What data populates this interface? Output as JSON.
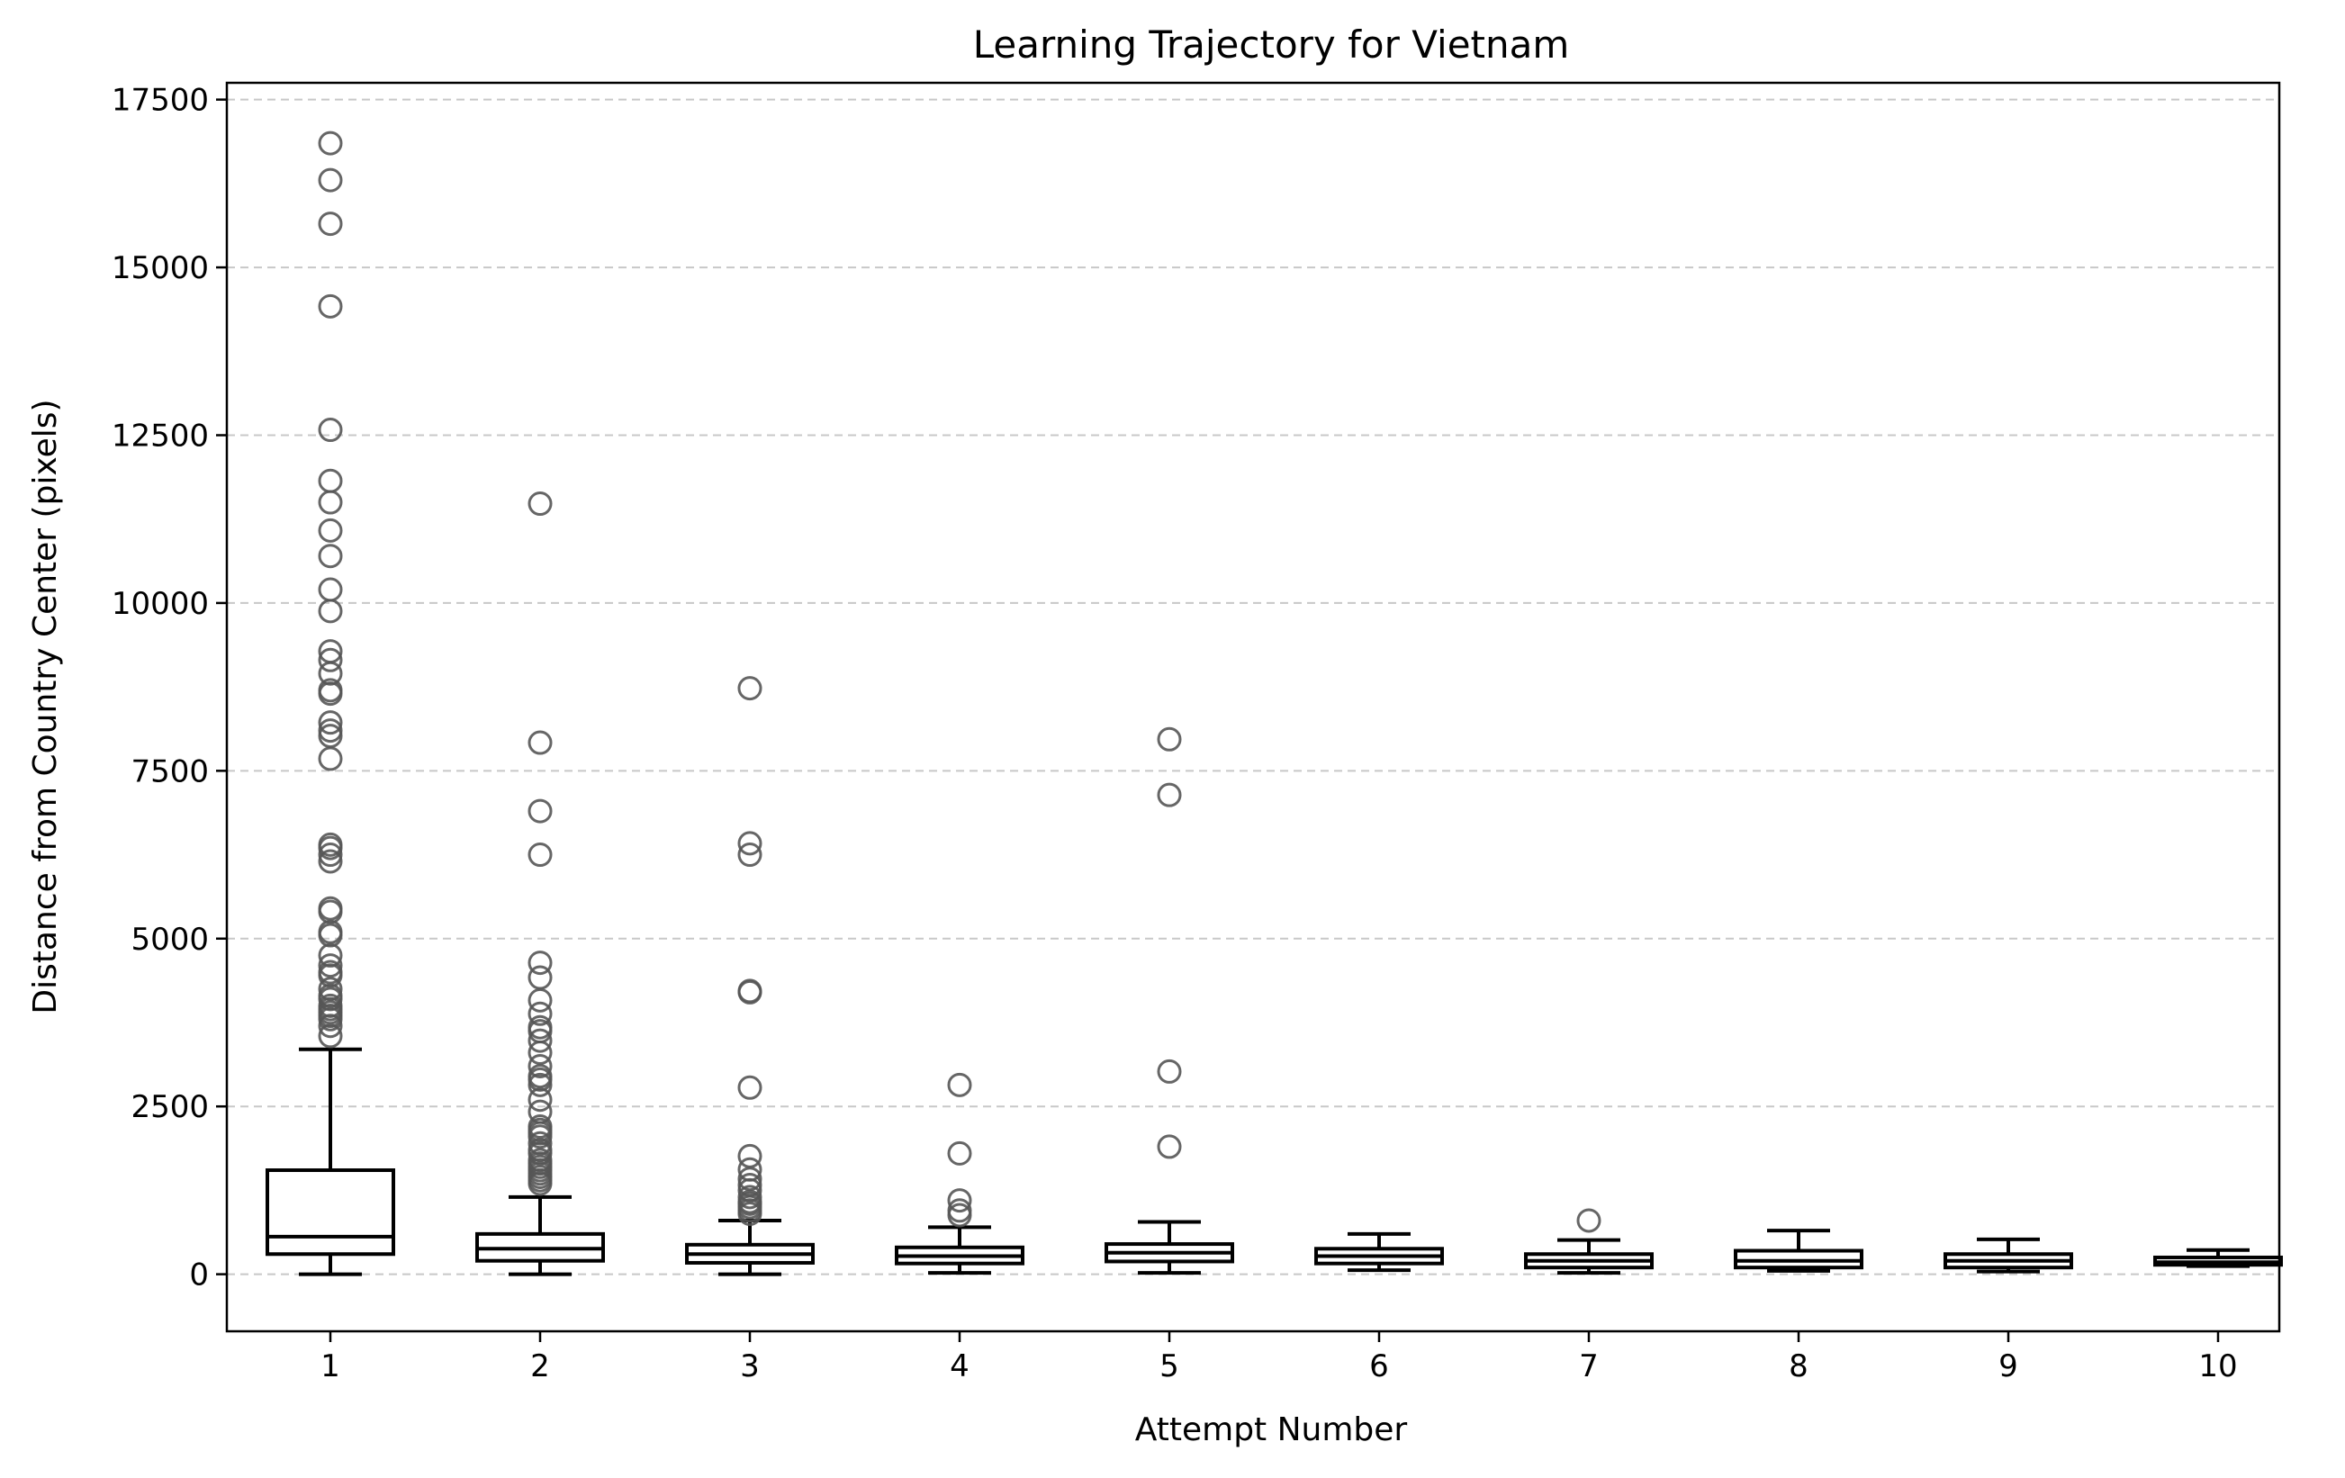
{
  "chart_data": {
    "type": "boxplot",
    "title": "Learning Trajectory for Vietnam",
    "xlabel": "Attempt Number",
    "ylabel": "Distance from Country Center (pixels)",
    "categories": [
      "1",
      "2",
      "3",
      "4",
      "5",
      "6",
      "7",
      "8",
      "9",
      "10"
    ],
    "ylim": [
      -850,
      17750
    ],
    "yticks": [
      0,
      2500,
      5000,
      7500,
      10000,
      12500,
      15000,
      17500
    ],
    "ytick_labels": [
      "0",
      "2500",
      "5000",
      "7500",
      "10000",
      "12500",
      "15000",
      "17500"
    ],
    "grid": "y-dashed",
    "boxes": [
      {
        "category": "1",
        "whisker_low": 0,
        "q1": 300,
        "median": 560,
        "q3": 1550,
        "whisker_high": 3350,
        "outliers": [
          16850,
          16300,
          15650,
          14420,
          12580,
          11820,
          11500,
          11080,
          10700,
          10200,
          9880,
          9280,
          9150,
          8950,
          8700,
          8650,
          8220,
          8100,
          8020,
          7680,
          6400,
          6350,
          6250,
          6150,
          5450,
          5400,
          5100,
          5050,
          4750,
          4600,
          4500,
          4450,
          4250,
          4150,
          4100,
          4000,
          3950,
          3900,
          3850,
          3800,
          3700,
          3550
        ]
      },
      {
        "category": "2",
        "whisker_low": 0,
        "q1": 200,
        "median": 380,
        "q3": 600,
        "whisker_high": 1150,
        "outliers": [
          11480,
          7920,
          6900,
          6250,
          4640,
          4420,
          4080,
          3880,
          3680,
          3620,
          3480,
          3300,
          3100,
          2950,
          2900,
          2820,
          2600,
          2420,
          2200,
          2150,
          2100,
          2050,
          1950,
          1850,
          1800,
          1700,
          1650,
          1600,
          1550,
          1500,
          1450,
          1400,
          1350
        ]
      },
      {
        "category": "3",
        "whisker_low": 0,
        "q1": 170,
        "median": 300,
        "q3": 440,
        "whisker_high": 800,
        "outliers": [
          8730,
          6420,
          6250,
          4220,
          4200,
          2780,
          1760,
          1560,
          1420,
          1330,
          1250,
          1150,
          1080,
          1050,
          1000,
          950,
          900
        ]
      },
      {
        "category": "4",
        "whisker_low": 20,
        "q1": 160,
        "median": 270,
        "q3": 400,
        "whisker_high": 700,
        "outliers": [
          2820,
          1800,
          1100,
          950,
          880
        ]
      },
      {
        "category": "5",
        "whisker_low": 20,
        "q1": 190,
        "median": 320,
        "q3": 450,
        "whisker_high": 780,
        "outliers": [
          7970,
          7140,
          3020,
          1900
        ]
      },
      {
        "category": "6",
        "whisker_low": 60,
        "q1": 160,
        "median": 270,
        "q3": 380,
        "whisker_high": 600,
        "outliers": []
      },
      {
        "category": "7",
        "whisker_low": 20,
        "q1": 100,
        "median": 200,
        "q3": 300,
        "whisker_high": 510,
        "outliers": [
          800
        ]
      },
      {
        "category": "8",
        "whisker_low": 50,
        "q1": 100,
        "median": 200,
        "q3": 350,
        "whisker_high": 650,
        "outliers": []
      },
      {
        "category": "9",
        "whisker_low": 40,
        "q1": 100,
        "median": 200,
        "q3": 300,
        "whisker_high": 520,
        "outliers": []
      },
      {
        "category": "10",
        "whisker_low": 120,
        "q1": 140,
        "median": 180,
        "q3": 250,
        "whisker_high": 360,
        "outliers": []
      }
    ],
    "colors": {
      "box": "#000000",
      "outlier": "#555555",
      "grid": "#c8c8c8",
      "background": "#ffffff"
    }
  }
}
